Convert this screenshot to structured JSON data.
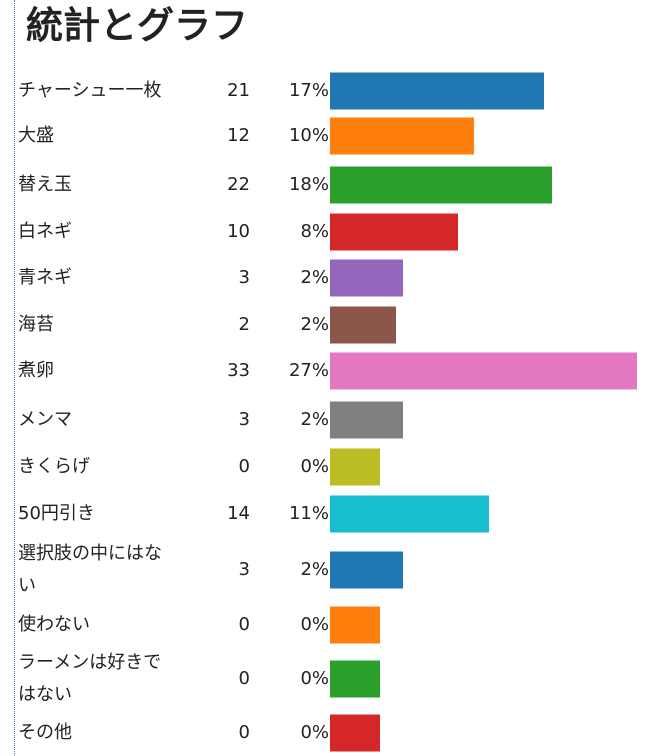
{
  "title": "統計とグラフ",
  "chart_data": {
    "type": "bar",
    "orientation": "horizontal",
    "title": "統計とグラフ",
    "categories": [
      "チャーシュー一枚",
      "大盛",
      "替え玉",
      "白ネギ",
      "青ネギ",
      "海苔",
      "煮卵",
      "メンマ",
      "きくらげ",
      "50円引き",
      "選択肢の中にはない",
      "使わない",
      "ラーメンは好きではない",
      "その他"
    ],
    "counts": [
      21,
      12,
      22,
      10,
      3,
      2,
      33,
      3,
      0,
      14,
      3,
      0,
      0,
      0
    ],
    "percent_labels": [
      "17%",
      "10%",
      "18%",
      "8%",
      "2%",
      "2%",
      "27%",
      "2%",
      "0%",
      "11%",
      "2%",
      "0%",
      "0%",
      "0%"
    ],
    "colors": [
      "#1f77b4",
      "#ff7f0e",
      "#2ca02c",
      "#d62728",
      "#9467bd",
      "#8c564b",
      "#e377c2",
      "#7f7f7f",
      "#bcbd22",
      "#17becf",
      "#1f77b4",
      "#ff7f0e",
      "#2ca02c",
      "#d62728"
    ]
  }
}
